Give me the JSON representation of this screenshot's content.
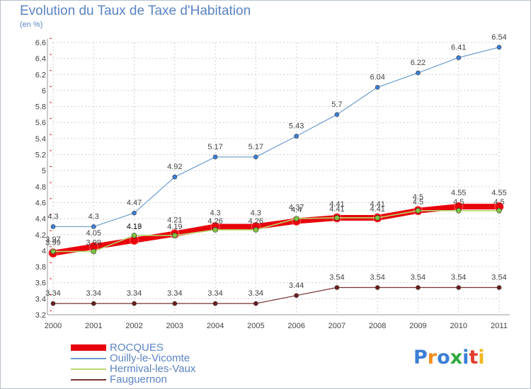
{
  "header": {
    "title": "Evolution du Taux de Taxe d'Habitation",
    "subtitle": "(en %)"
  },
  "brand": {
    "letters": [
      "P",
      "r",
      "o",
      "x",
      "i",
      "t",
      "i"
    ],
    "colors": [
      "#3b7fd6",
      "#f28c1e",
      "#3b7fd6",
      "#2eaa3c",
      "#3b7fd6",
      "#e23c2c",
      "#f2b71e"
    ]
  },
  "chart_data": {
    "type": "line",
    "title": "Evolution du Taux de Taxe d'Habitation",
    "ylabel": "(en %)",
    "x": [
      "2000",
      "2001",
      "2002",
      "2003",
      "2004",
      "2005",
      "2006",
      "2007",
      "2008",
      "2009",
      "2010",
      "2011"
    ],
    "ylim": [
      3.2,
      6.6
    ],
    "yticks": [
      "3.2",
      "3.4",
      "3.6",
      "3.8",
      "4",
      "4.2",
      "4.4",
      "4.6",
      "4.8",
      "5",
      "5.2",
      "5.4",
      "5.6",
      "5.8",
      "6",
      "6.2",
      "6.4",
      "6.6"
    ],
    "grid": true,
    "legend_position": "bottom-left",
    "series": [
      {
        "name": "ROCQUES",
        "color": "#e8000b",
        "marker_fill": "#e8000b",
        "values": [
          3.97,
          4.05,
          4.13,
          4.21,
          4.3,
          4.3,
          4.37,
          4.41,
          4.41,
          4.5,
          4.55,
          4.55
        ],
        "labels": [
          "3.97",
          "4.05",
          "4.13",
          "4.21",
          "4.3",
          "4.3",
          "4.37",
          "4.41",
          "4.41",
          "4.5",
          "4.55",
          "4.55"
        ]
      },
      {
        "name": "Ouilly-le-Vicomte",
        "color": "#6b9ccf",
        "marker_fill": "#3b7fd6",
        "values": [
          4.3,
          4.3,
          4.47,
          4.92,
          5.17,
          5.17,
          5.43,
          5.7,
          6.04,
          6.22,
          6.41,
          6.54
        ],
        "labels": [
          "4.3",
          "4.3",
          "4.47",
          "4.92",
          "5.17",
          "5.17",
          "5.43",
          "5.7",
          "6.04",
          "6.22",
          "6.41",
          "6.54"
        ]
      },
      {
        "name": "Hermival-les-Vaux",
        "color": "#b6d86b",
        "marker_fill": "#7fc241",
        "values": [
          3.99,
          3.99,
          4.19,
          4.19,
          4.26,
          4.26,
          4.4,
          4.41,
          4.41,
          4.5,
          4.5,
          4.5
        ],
        "labels": [
          "3.99",
          "3.99",
          "4.19",
          "4.19",
          "4.26",
          "4.26",
          "4.4",
          "4.41",
          "4.41",
          "4.5",
          "4.5",
          "4.5"
        ]
      },
      {
        "name": "Fauguernon",
        "color": "#7a3030",
        "marker_fill": "#6b1f1f",
        "values": [
          3.34,
          3.34,
          3.34,
          3.34,
          3.34,
          3.34,
          3.44,
          3.54,
          3.54,
          3.54,
          3.54,
          3.54
        ],
        "labels": [
          "3.34",
          "3.34",
          "3.34",
          "3.34",
          "3.34",
          "3.34",
          "3.44",
          "3.54",
          "3.54",
          "3.54",
          "3.54",
          "3.54"
        ]
      }
    ]
  }
}
